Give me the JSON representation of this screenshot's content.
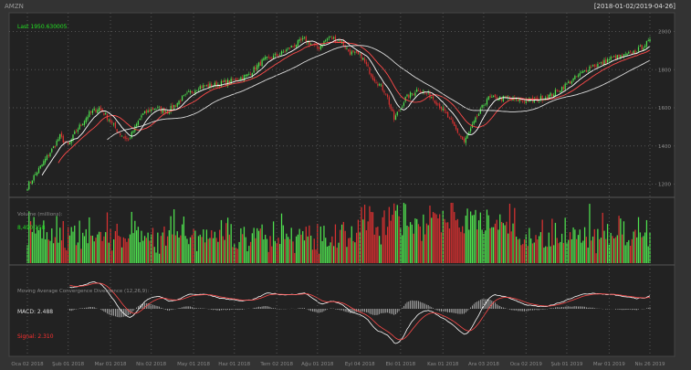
{
  "header": {
    "symbol": "AMZN",
    "range": "[2018-01-02/2019-04-26]"
  },
  "colors": {
    "background": "#333333",
    "panel": "#222222",
    "up": "#4fe24f",
    "down": "#d93131",
    "sma_fast": "#ffffff",
    "sma_slow": "#ff4a4a",
    "macd_line": "#ffffff",
    "signal_line": "#ff4a4a",
    "hist": "#bbbbbb",
    "label_green": "#22e022",
    "label_red": "#ff3030",
    "grid": "#555555",
    "text": "#888888"
  },
  "chart_data": [
    {
      "type": "candlestick",
      "title": "Last 1950.630005",
      "y_ticks": [
        "2000",
        "1800",
        "1600",
        "1400",
        "1200"
      ],
      "ylim": [
        1150,
        2060
      ],
      "x_ticks": [
        "Oca 02 2018",
        "Şub 01 2018",
        "Mar 01 2018",
        "Nis 02 2018",
        "May 01 2018",
        "Haz 01 2018",
        "Tem 02 2018",
        "Ağu 01 2018",
        "Eyl 04 2018",
        "Eki 01 2018",
        "Kas 01 2018",
        "Ara 03 2018",
        "Oca 02 2019",
        "Şub 01 2019",
        "Mar 01 2019",
        "Nis 26 2019"
      ],
      "overlays": [
        "SMA fast (white)",
        "SMA slow (red)",
        "SMA long (white)"
      ],
      "anchors": [
        [
          0,
          1190
        ],
        [
          8,
          1290
        ],
        [
          15,
          1380
        ],
        [
          20,
          1450
        ],
        [
          25,
          1400
        ],
        [
          30,
          1480
        ],
        [
          38,
          1570
        ],
        [
          44,
          1600
        ],
        [
          50,
          1540
        ],
        [
          56,
          1470
        ],
        [
          62,
          1430
        ],
        [
          70,
          1560
        ],
        [
          78,
          1600
        ],
        [
          86,
          1580
        ],
        [
          95,
          1650
        ],
        [
          105,
          1710
        ],
        [
          115,
          1720
        ],
        [
          125,
          1740
        ],
        [
          135,
          1770
        ],
        [
          145,
          1850
        ],
        [
          155,
          1880
        ],
        [
          162,
          1920
        ],
        [
          170,
          1960
        ],
        [
          178,
          1910
        ],
        [
          185,
          1970
        ],
        [
          192,
          1950
        ],
        [
          198,
          1890
        ],
        [
          205,
          1870
        ],
        [
          212,
          1760
        ],
        [
          220,
          1680
        ],
        [
          225,
          1540
        ],
        [
          232,
          1650
        ],
        [
          240,
          1700
        ],
        [
          248,
          1660
        ],
        [
          255,
          1590
        ],
        [
          262,
          1500
        ],
        [
          268,
          1420
        ],
        [
          274,
          1520
        ],
        [
          282,
          1650
        ],
        [
          292,
          1650
        ],
        [
          302,
          1640
        ],
        [
          312,
          1640
        ],
        [
          322,
          1670
        ],
        [
          332,
          1730
        ],
        [
          340,
          1780
        ],
        [
          346,
          1820
        ],
        [
          352,
          1830
        ],
        [
          358,
          1860
        ],
        [
          366,
          1870
        ],
        [
          374,
          1900
        ],
        [
          382,
          1950
        ]
      ]
    },
    {
      "type": "bar",
      "title": "Volume (millions):",
      "last_value": "8,490,158",
      "value_range_millions": [
        2,
        16
      ]
    },
    {
      "type": "line",
      "title": "Moving Average Convergence Divergence (12,26,9):",
      "series": [
        {
          "name": "MACD",
          "label": "MACD: 2.488"
        },
        {
          "name": "Signal",
          "label": "Signal: 2.310"
        }
      ]
    }
  ]
}
